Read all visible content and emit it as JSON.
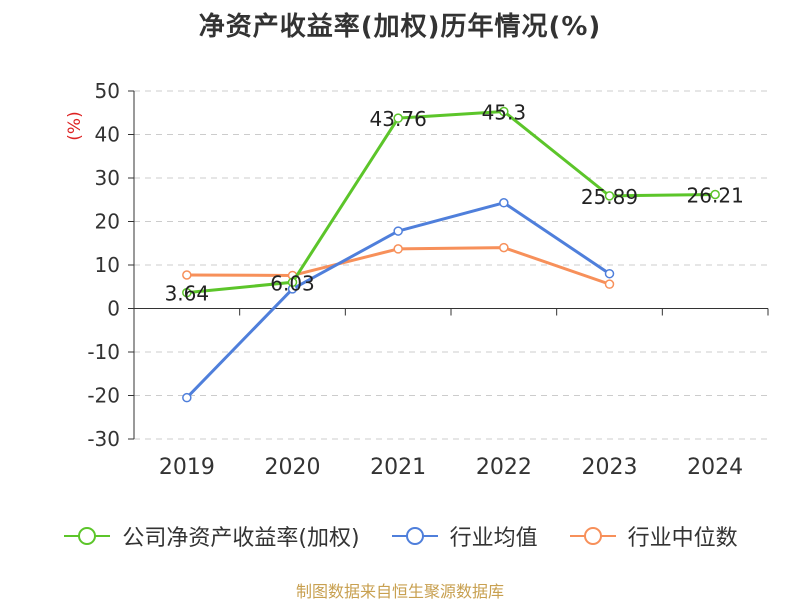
{
  "chart_data": {
    "type": "line",
    "title": "净资产收益率(加权)历年情况(%)",
    "ylabel": "(%)",
    "xlabel": "",
    "categories": [
      "2019",
      "2020",
      "2021",
      "2022",
      "2023",
      "2024"
    ],
    "ylim": [
      -30,
      50
    ],
    "yticks": [
      "50",
      "40",
      "30",
      "20",
      "10",
      "0",
      "-10",
      "-20",
      "-30"
    ],
    "grid": true,
    "legend_position": "bottom",
    "series": [
      {
        "name": "公司净资产收益率(加权)",
        "color": "#5cc52a",
        "values": [
          3.64,
          6.03,
          43.76,
          45.3,
          25.89,
          26.21
        ],
        "labels": [
          "3.64",
          "6.03",
          "43.76",
          "45.3",
          "25.89",
          "26.21"
        ]
      },
      {
        "name": "行业均值",
        "color": "#4f7fdb",
        "values": [
          -20.5,
          4.5,
          17.8,
          24.3,
          8.0,
          null
        ]
      },
      {
        "name": "行业中位数",
        "color": "#f7905a",
        "values": [
          7.7,
          7.6,
          13.7,
          14.0,
          5.6,
          null
        ]
      }
    ]
  },
  "source": "制图数据来自恒生聚源数据库"
}
